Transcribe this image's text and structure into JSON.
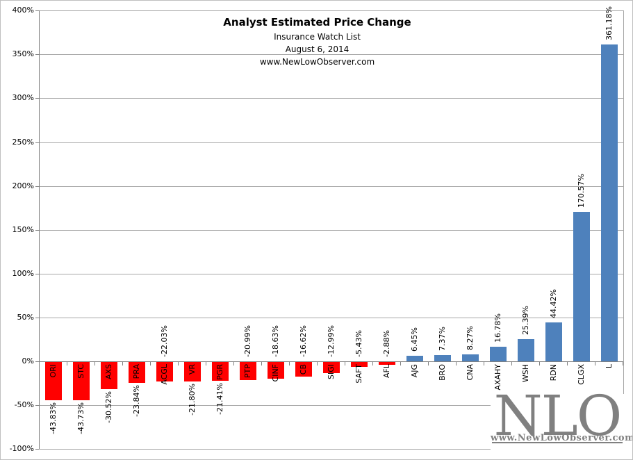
{
  "header": {
    "title": "Analyst Estimated Price Change",
    "subtitle": "Insurance Watch List",
    "date": "August 6, 2014",
    "website": "www.NewLowObserver.com"
  },
  "logo": {
    "text": "NLO",
    "caption": "www.NewLowObserver.com"
  },
  "colors": {
    "positive_bar": "#4E81BC",
    "negative_bar": "#FF0000",
    "gridline": "#A6A6A6",
    "axis": "#808080",
    "text": "#000000",
    "logo_gray": "#808080"
  },
  "chart_data": {
    "type": "bar",
    "title": "Analyst Estimated Price Change",
    "subtitle_lines": [
      "Insurance Watch List",
      "August 6, 2014",
      "www.NewLowObserver.com"
    ],
    "yaxis": {
      "min": -100,
      "max": 400,
      "step": 50,
      "tick_labels": [
        "400%",
        "350%",
        "300%",
        "250%",
        "200%",
        "150%",
        "100%",
        "50%",
        "0%",
        "-50%",
        "-100%"
      ]
    },
    "grid": true,
    "legend": false,
    "bars": [
      {
        "ticker": "ORI",
        "value": -43.83,
        "label": "-43.83%",
        "label_pos": "below"
      },
      {
        "ticker": "STC",
        "value": -43.73,
        "label": "-43.73%",
        "label_pos": "below"
      },
      {
        "ticker": "AXS",
        "value": -30.52,
        "label": "-30.52%",
        "label_pos": "below"
      },
      {
        "ticker": "PRA",
        "value": -23.84,
        "label": "-23.84%",
        "label_pos": "below"
      },
      {
        "ticker": "ACGL",
        "value": -22.03,
        "label": "-22.03%",
        "label_pos": "axis"
      },
      {
        "ticker": "VR",
        "value": -21.8,
        "label": "-21.80%",
        "label_pos": "below"
      },
      {
        "ticker": "PGR",
        "value": -21.41,
        "label": "-21.41%",
        "label_pos": "below"
      },
      {
        "ticker": "PTP",
        "value": -20.99,
        "label": "-20.99%",
        "label_pos": "axis"
      },
      {
        "ticker": "CINF",
        "value": -18.63,
        "label": "-18.63%",
        "label_pos": "axis"
      },
      {
        "ticker": "CB",
        "value": -16.62,
        "label": "-16.62%",
        "label_pos": "axis"
      },
      {
        "ticker": "SIGI",
        "value": -12.99,
        "label": "-12.99%",
        "label_pos": "axis"
      },
      {
        "ticker": "SAFT",
        "value": -5.43,
        "label": "-5.43%",
        "label_pos": "axis"
      },
      {
        "ticker": "AFL",
        "value": -2.88,
        "label": "-2.88%",
        "label_pos": "axis"
      },
      {
        "ticker": "AJG",
        "value": 6.45,
        "label": "6.45%",
        "label_pos": "above"
      },
      {
        "ticker": "BRO",
        "value": 7.37,
        "label": "7.37%",
        "label_pos": "above"
      },
      {
        "ticker": "CNA",
        "value": 8.27,
        "label": "8.27%",
        "label_pos": "above"
      },
      {
        "ticker": "AXAHY",
        "value": 16.78,
        "label": "16.78%",
        "label_pos": "above"
      },
      {
        "ticker": "WSH",
        "value": 25.39,
        "label": "25.39%",
        "label_pos": "above"
      },
      {
        "ticker": "RDN",
        "value": 44.42,
        "label": "44.42%",
        "label_pos": "above"
      },
      {
        "ticker": "CLGX",
        "value": 170.57,
        "label": "170.57%",
        "label_pos": "above"
      },
      {
        "ticker": "L",
        "value": 361.18,
        "label": "361.18%",
        "label_pos": "above"
      }
    ]
  }
}
